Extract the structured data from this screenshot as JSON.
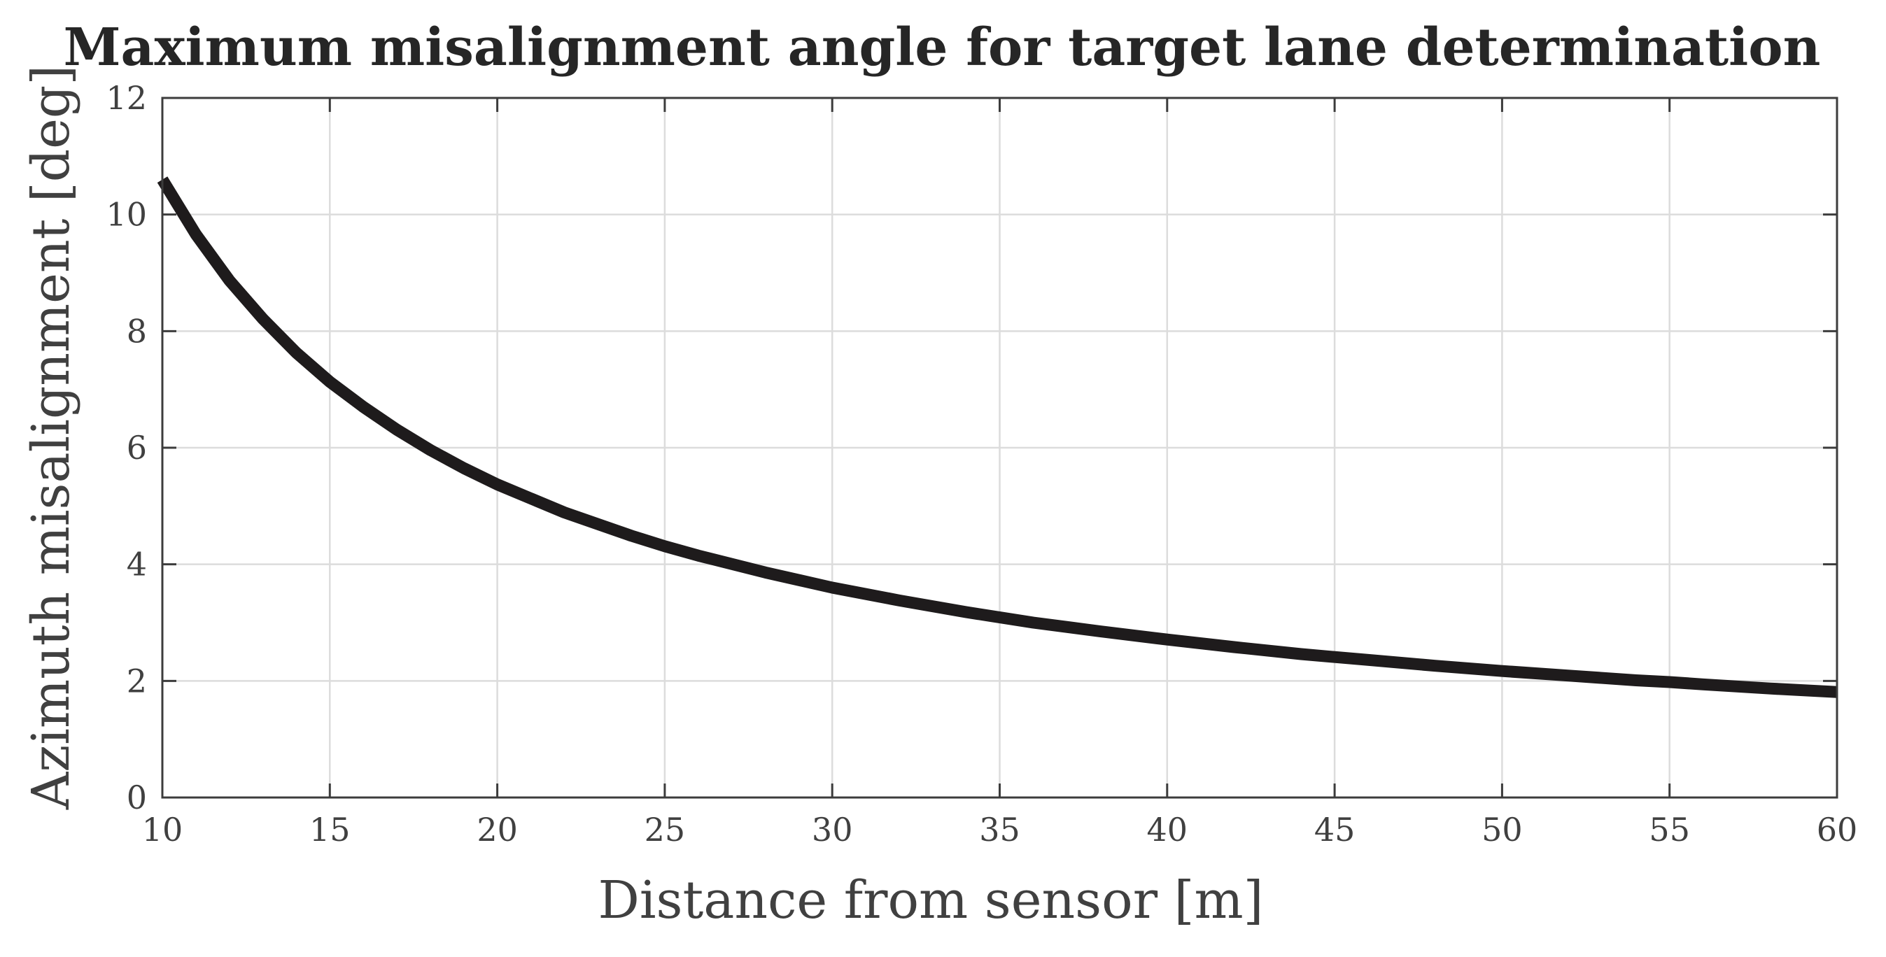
{
  "chart_data": {
    "type": "line",
    "title": "Maximum misalignment angle for target lane determination",
    "xlabel": "Distance from sensor [m]",
    "ylabel": "Azimuth misalignment [deg]",
    "xlim": [
      10,
      60
    ],
    "ylim": [
      0,
      12
    ],
    "xticks": [
      10,
      15,
      20,
      25,
      30,
      35,
      40,
      45,
      50,
      55,
      60
    ],
    "yticks": [
      0,
      2,
      4,
      6,
      8,
      10,
      12
    ],
    "grid": true,
    "legend": "none",
    "series": [
      {
        "color": "#1e1b1c",
        "x": [
          10,
          11,
          12,
          13,
          14,
          15,
          16,
          17,
          18,
          19,
          20,
          22,
          24,
          25,
          26,
          28,
          30,
          32,
          34,
          35,
          36,
          38,
          40,
          42,
          44,
          45,
          46,
          48,
          50,
          52,
          54,
          55,
          56,
          58,
          60
        ],
        "y": [
          10.6,
          9.66,
          8.87,
          8.21,
          7.63,
          7.13,
          6.7,
          6.31,
          5.96,
          5.65,
          5.37,
          4.89,
          4.49,
          4.31,
          4.15,
          3.86,
          3.6,
          3.38,
          3.18,
          3.09,
          3.0,
          2.85,
          2.71,
          2.58,
          2.46,
          2.41,
          2.36,
          2.26,
          2.17,
          2.09,
          2.01,
          1.98,
          1.94,
          1.87,
          1.81
        ]
      }
    ]
  }
}
